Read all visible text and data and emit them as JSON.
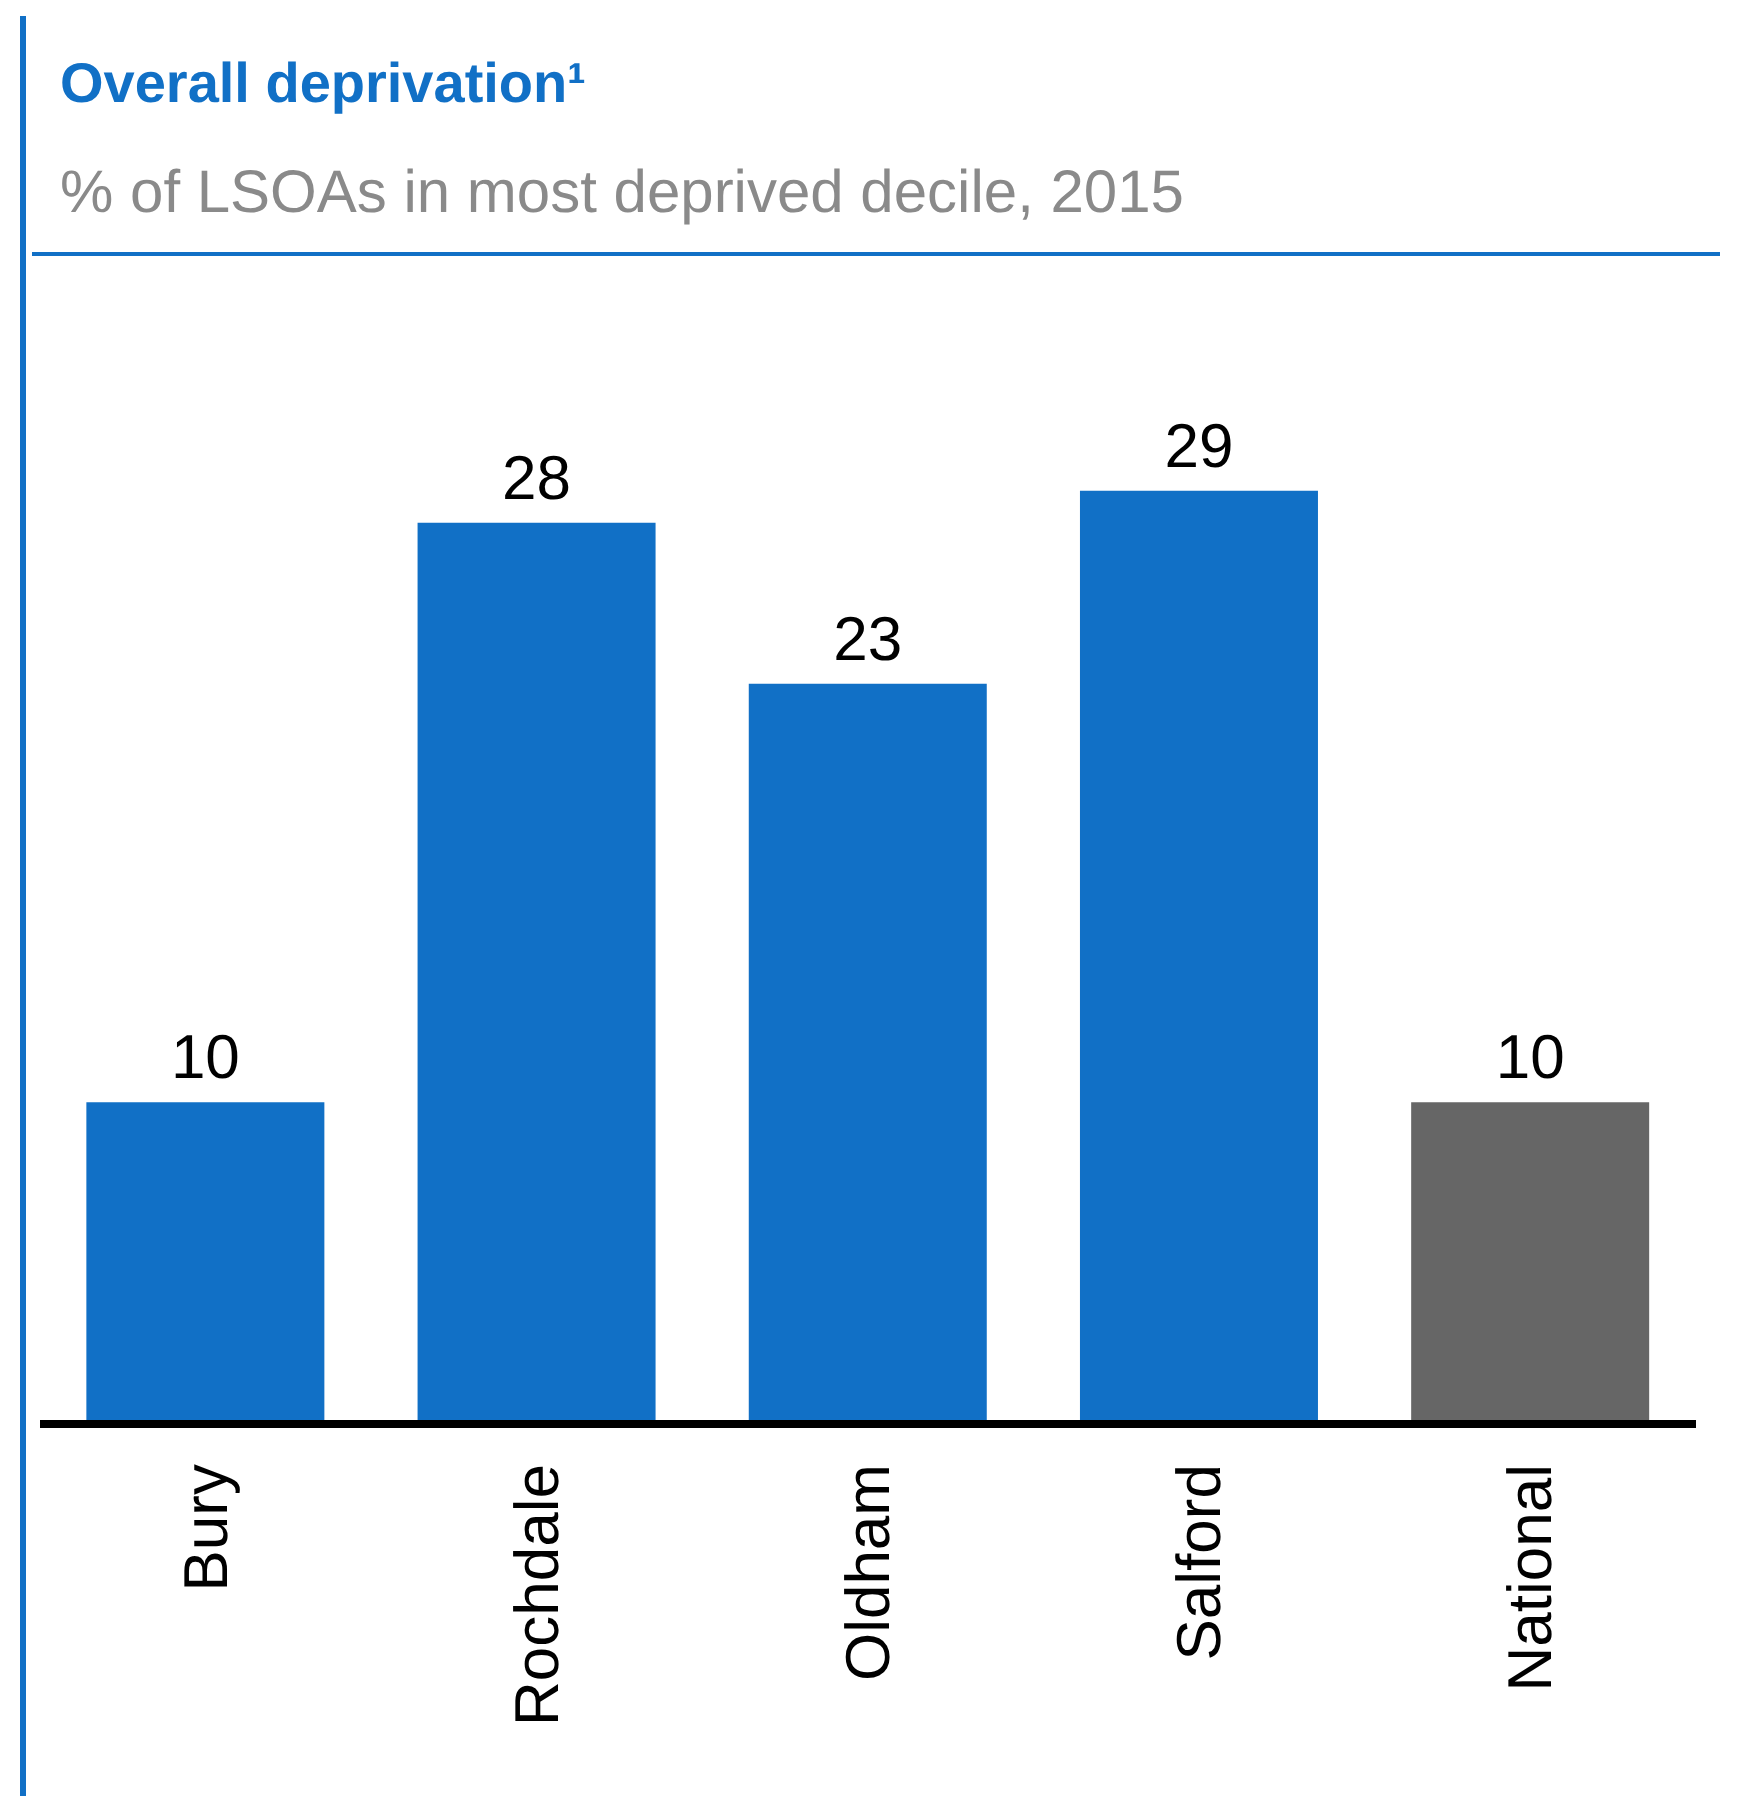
{
  "chart_data": {
    "type": "bar",
    "title": "Overall deprivation¹",
    "subtitle": "% of LSOAs in most deprived decile, 2015",
    "categories": [
      "Bury",
      "Rochdale",
      "Oldham",
      "Salford",
      "National"
    ],
    "values": [
      10,
      28,
      23,
      29,
      10
    ],
    "colors": [
      "#1170c6",
      "#1170c6",
      "#1170c6",
      "#1170c6",
      "#666666"
    ],
    "data_labels": true,
    "grid": false,
    "legend": false
  }
}
